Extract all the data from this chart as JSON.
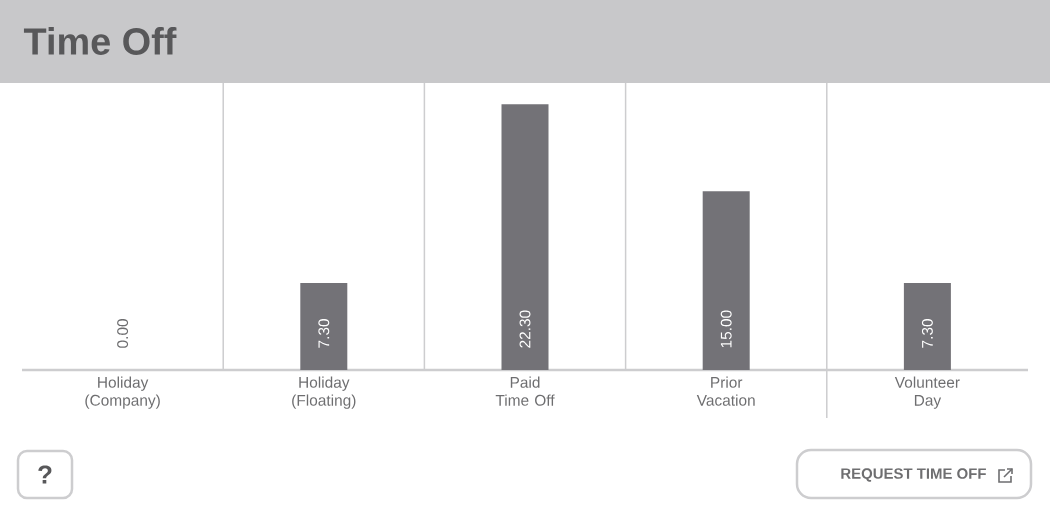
{
  "chart_data": {
    "type": "bar",
    "title": "Time Off",
    "categories": [
      "Holiday (Company)",
      "Holiday (Floating)",
      "Paid Time Off",
      "Prior Vacation",
      "Volunteer Day"
    ],
    "values": [
      0.0,
      7.3,
      22.3,
      15.0,
      7.3
    ],
    "value_labels": [
      "0.00",
      "7.30",
      "22.30",
      "15.00",
      "7.30"
    ],
    "color": "#737277",
    "grid": "x",
    "annotations": [
      "?",
      "REQUEST TIME OFF"
    ]
  }
}
